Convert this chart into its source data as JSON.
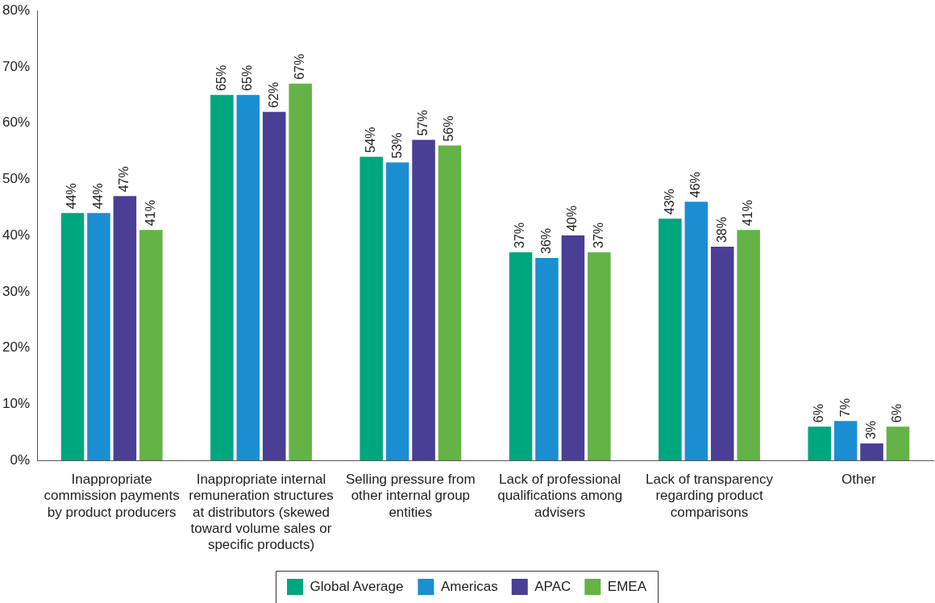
{
  "chart_data": {
    "type": "bar",
    "categories": [
      "Inappropriate commission payments by product producers",
      "Inappropriate internal remuneration structures at distributors (skewed toward volume sales or specific products)",
      "Selling pressure from other internal group entities",
      "Lack of professional qualifications among advisers",
      "Lack of transparency regarding product comparisons",
      "Other"
    ],
    "series": [
      {
        "name": "Global Average",
        "color": "#00a67e",
        "values": [
          44,
          65,
          54,
          37,
          43,
          6
        ],
        "value_labels": [
          "44%",
          "65%",
          "54%",
          "37%",
          "43%",
          "6%"
        ]
      },
      {
        "name": "Americas",
        "color": "#1b8ed2",
        "values": [
          44,
          65,
          53,
          36,
          46,
          7
        ],
        "value_labels": [
          "44%",
          "65%",
          "53%",
          "36%",
          "46%",
          "7%"
        ]
      },
      {
        "name": "APAC",
        "color": "#4a3e95",
        "values": [
          47,
          62,
          57,
          40,
          38,
          3
        ],
        "value_labels": [
          "47%",
          "62%",
          "57%",
          "40%",
          "38%",
          "3%"
        ]
      },
      {
        "name": "EMEA",
        "color": "#63b346",
        "values": [
          41,
          67,
          56,
          37,
          41,
          6
        ],
        "value_labels": [
          "41%",
          "67%",
          "56%",
          "37%",
          "41%",
          "6%"
        ]
      }
    ],
    "ylim": [
      0,
      80
    ],
    "yticks": [
      {
        "value": 0,
        "label": "0%"
      },
      {
        "value": 10,
        "label": "10%"
      },
      {
        "value": 20,
        "label": "20%"
      },
      {
        "value": 30,
        "label": "30%"
      },
      {
        "value": 40,
        "label": "40%"
      },
      {
        "value": 50,
        "label": "50%"
      },
      {
        "value": 60,
        "label": "60%"
      },
      {
        "value": 70,
        "label": "70%"
      },
      {
        "value": 80,
        "label": "80%"
      }
    ],
    "grid": false,
    "legend": "bottom"
  }
}
